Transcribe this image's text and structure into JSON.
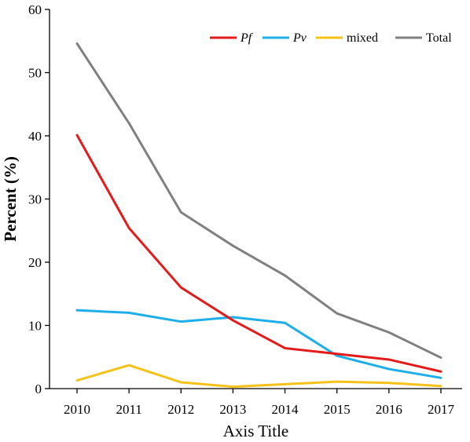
{
  "chart_data": {
    "type": "line",
    "title": "",
    "xlabel": "Axis Title",
    "ylabel": "Percent (%)",
    "x": [
      "2010",
      "2011",
      "2012",
      "2013",
      "2014",
      "2015",
      "2016",
      "2017"
    ],
    "ylim": [
      0,
      60
    ],
    "yticks": [
      "0",
      "10",
      "20",
      "30",
      "40",
      "50",
      "60"
    ],
    "grid": false,
    "legend_position": "top-right",
    "series": [
      {
        "name": "Pf",
        "italic": true,
        "color": "#e31b1b",
        "values": [
          40.1,
          25.4,
          16.0,
          10.8,
          6.4,
          5.5,
          4.6,
          2.7
        ]
      },
      {
        "name": "Pv",
        "italic": true,
        "color": "#1eaee8",
        "values": [
          12.4,
          12.0,
          10.6,
          11.3,
          10.4,
          5.2,
          3.1,
          1.7
        ]
      },
      {
        "name": "mixed",
        "italic": false,
        "color": "#f5c21a",
        "values": [
          1.3,
          3.7,
          1.0,
          0.3,
          0.7,
          1.1,
          0.9,
          0.4
        ]
      },
      {
        "name": "Total",
        "italic": false,
        "color": "#808080",
        "values": [
          54.6,
          42.0,
          27.9,
          22.6,
          17.9,
          11.9,
          8.9,
          4.9
        ]
      }
    ]
  }
}
